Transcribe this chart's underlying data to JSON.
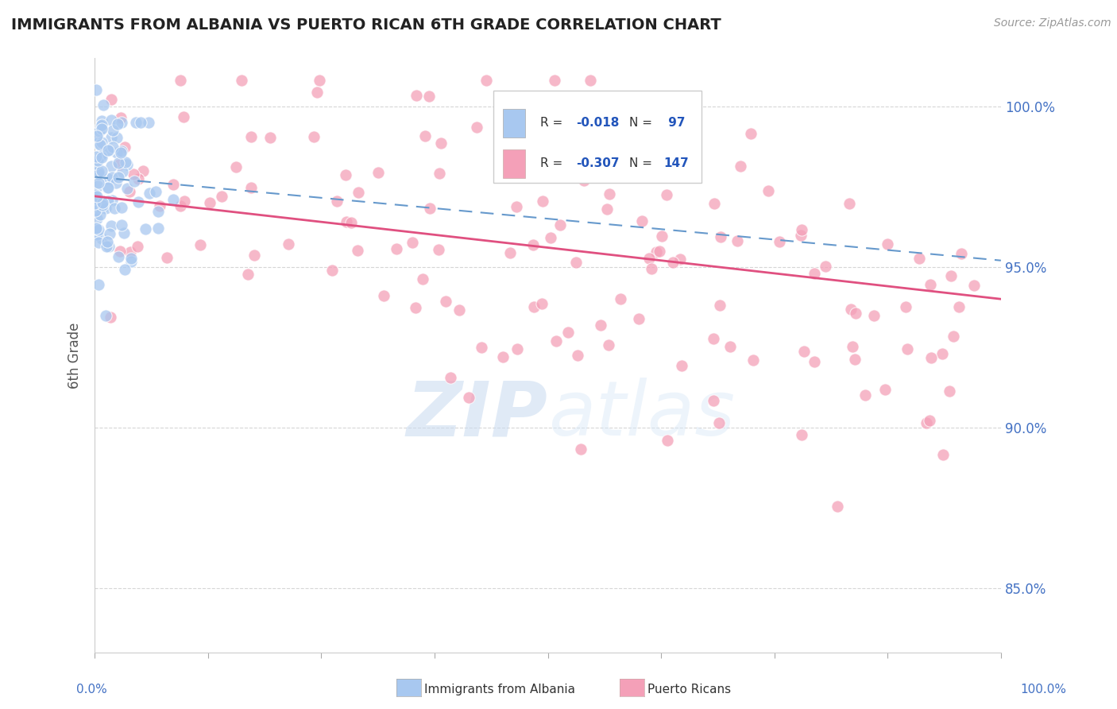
{
  "title": "IMMIGRANTS FROM ALBANIA VS PUERTO RICAN 6TH GRADE CORRELATION CHART",
  "source_text": "Source: ZipAtlas.com",
  "ylabel": "6th Grade",
  "xmin": 0.0,
  "xmax": 100.0,
  "ymin": 83.0,
  "ymax": 101.5,
  "yticks": [
    85.0,
    90.0,
    95.0,
    100.0
  ],
  "ytick_labels": [
    "85.0%",
    "90.0%",
    "95.0%",
    "100.0%"
  ],
  "legend_r1_label": "R = ",
  "legend_r1_val": "-0.018",
  "legend_n1_label": "N = ",
  "legend_n1_val": " 97",
  "legend_r2_label": "R = ",
  "legend_r2_val": "-0.307",
  "legend_n2_label": "N = ",
  "legend_n2_val": "147",
  "blue_color": "#a8c8f0",
  "pink_color": "#f4a0b8",
  "blue_line_color": "#6699cc",
  "pink_line_color": "#e05080",
  "watermark_zip": "ZIP",
  "watermark_atlas": "atlas",
  "background_color": "#ffffff",
  "grid_color": "#cccccc",
  "right_axis_color": "#4472c4",
  "label_color": "#4472c4",
  "seed": 42,
  "albania_n": 97,
  "puertorico_n": 147,
  "xtick_positions": [
    0,
    12.5,
    25,
    37.5,
    50,
    62.5,
    75,
    87.5,
    100
  ],
  "bottom_left_label": "0.0%",
  "bottom_right_label": "100.0%",
  "bottom_legend1": "Immigrants from Albania",
  "bottom_legend2": "Puerto Ricans"
}
